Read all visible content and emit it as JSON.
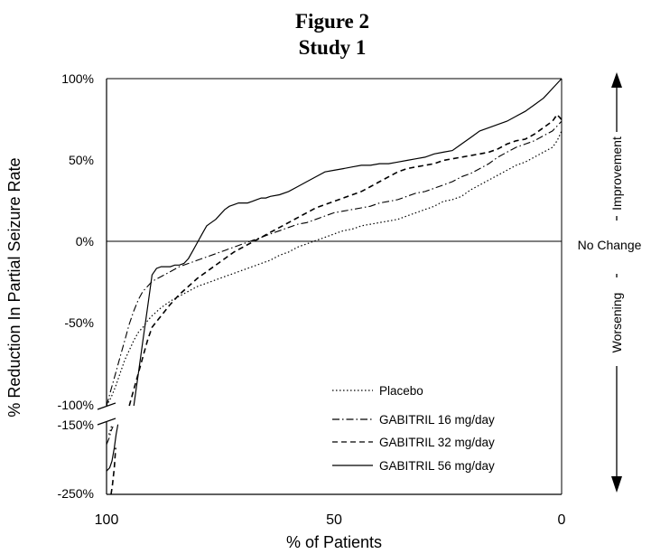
{
  "chart_data": {
    "type": "line",
    "title": "Figure 2",
    "subtitle": "Study 1",
    "xlabel": "% of Patients",
    "ylabel": "% Reduction In Partial Seizure Rate",
    "x_ticks": [
      "100",
      "50",
      "0"
    ],
    "y_ticks_upper": [
      "100%",
      "50%",
      "0%",
      "-50%",
      "-100%"
    ],
    "y_ticks_lower": [
      "-150%",
      "-250%"
    ],
    "xlim": [
      100,
      0
    ],
    "ylim_upper": [
      -100,
      100
    ],
    "ylim_lower": [
      -250,
      -140
    ],
    "zero_line_label": "No Change",
    "improvement_label": "Improvement",
    "worsening_label": "Worsening",
    "legend_position": "bottom-right",
    "series": [
      {
        "name": "Placebo",
        "style": "dotted",
        "x": [
          100,
          99,
          98,
          97,
          96,
          95,
          94,
          93,
          92,
          91,
          90,
          88,
          86,
          84,
          82,
          80,
          78,
          76,
          74,
          72,
          70,
          68,
          66,
          64,
          62,
          60,
          58,
          56,
          54,
          52,
          50,
          48,
          46,
          44,
          42,
          40,
          38,
          36,
          34,
          32,
          30,
          28,
          26,
          24,
          22,
          20,
          18,
          16,
          14,
          12,
          10,
          8,
          6,
          4,
          2,
          1,
          0
        ],
        "y": [
          -100,
          -95,
          -88,
          -80,
          -72,
          -66,
          -60,
          -55,
          -52,
          -48,
          -45,
          -40,
          -36,
          -33,
          -30,
          -27,
          -25,
          -23,
          -21,
          -19,
          -17,
          -15,
          -13,
          -11,
          -8,
          -6,
          -3,
          -1,
          1,
          3,
          5,
          7,
          8,
          10,
          11,
          12,
          13,
          14,
          16,
          18,
          20,
          22,
          25,
          26,
          28,
          32,
          35,
          38,
          41,
          44,
          47,
          49,
          52,
          55,
          58,
          62,
          68
        ]
      },
      {
        "name": "GABITRIL 16 mg/day",
        "style": "dash-dot",
        "x": [
          100,
          99,
          98,
          97,
          96,
          95,
          94,
          93,
          92,
          91,
          90,
          88,
          86,
          84,
          82,
          80,
          78,
          76,
          74,
          72,
          70,
          68,
          66,
          64,
          62,
          60,
          58,
          56,
          54,
          52,
          50,
          48,
          46,
          44,
          42,
          40,
          38,
          36,
          34,
          32,
          30,
          28,
          26,
          24,
          22,
          20,
          18,
          16,
          14,
          12,
          10,
          8,
          6,
          4,
          2,
          1,
          0
        ],
        "y": [
          -100,
          -90,
          -80,
          -70,
          -60,
          -50,
          -42,
          -35,
          -30,
          -27,
          -24,
          -21,
          -18,
          -15,
          -13,
          -11,
          -9,
          -7,
          -5,
          -3,
          -1,
          1,
          3,
          5,
          7,
          9,
          11,
          12,
          14,
          16,
          18,
          19,
          20,
          21,
          22,
          24,
          25,
          26,
          28,
          30,
          31,
          33,
          35,
          37,
          40,
          42,
          45,
          48,
          52,
          55,
          58,
          60,
          62,
          65,
          68,
          71,
          74
        ]
      },
      {
        "name": "GABITRIL 32 mg/day",
        "style": "dashed",
        "x": [
          95,
          94,
          93,
          92,
          91,
          90,
          88,
          86,
          84,
          82,
          80,
          78,
          76,
          74,
          72,
          70,
          68,
          66,
          64,
          62,
          60,
          58,
          56,
          54,
          52,
          50,
          48,
          46,
          44,
          42,
          40,
          38,
          36,
          34,
          32,
          30,
          28,
          26,
          24,
          22,
          20,
          18,
          16,
          14,
          12,
          10,
          8,
          6,
          4,
          2,
          1,
          0
        ],
        "y": [
          -100,
          -90,
          -80,
          -70,
          -60,
          -52,
          -45,
          -38,
          -32,
          -27,
          -22,
          -18,
          -14,
          -10,
          -6,
          -3,
          0,
          3,
          6,
          9,
          12,
          15,
          18,
          21,
          23,
          25,
          27,
          29,
          31,
          34,
          37,
          40,
          43,
          45,
          46,
          47,
          48,
          50,
          51,
          52,
          53,
          54,
          55,
          57,
          60,
          62,
          63,
          66,
          70,
          74,
          78,
          75
        ]
      },
      {
        "name": "GABITRIL 56 mg/day",
        "style": "solid",
        "x": [
          94,
          93,
          92,
          91,
          90,
          89,
          88,
          87,
          86,
          85,
          84,
          83,
          82,
          81,
          80,
          79,
          78,
          77,
          76,
          75,
          74,
          73,
          72,
          71,
          70,
          69,
          68,
          67,
          66,
          65,
          64,
          62,
          60,
          58,
          56,
          54,
          52,
          50,
          48,
          46,
          44,
          42,
          40,
          38,
          36,
          34,
          32,
          30,
          28,
          26,
          24,
          22,
          20,
          18,
          16,
          14,
          12,
          10,
          8,
          6,
          4,
          3,
          2,
          1,
          0
        ],
        "y": [
          -100,
          -80,
          -60,
          -40,
          -20,
          -16,
          -15,
          -15,
          -15,
          -14,
          -14,
          -13,
          -10,
          -5,
          0,
          5,
          10,
          12,
          14,
          17,
          20,
          22,
          23,
          24,
          24,
          24,
          25,
          26,
          27,
          27,
          28,
          29,
          31,
          34,
          37,
          40,
          43,
          44,
          45,
          46,
          47,
          47,
          48,
          48,
          49,
          50,
          51,
          52,
          54,
          55,
          56,
          60,
          64,
          68,
          70,
          72,
          74,
          77,
          80,
          84,
          88,
          91,
          94,
          97,
          100
        ]
      }
    ],
    "lower_panel": [
      {
        "name": "Placebo",
        "style": "dotted",
        "x": [
          99.5,
          99.2,
          99.0,
          98.8
        ],
        "y": [
          -160,
          -155,
          -150,
          -145
        ]
      },
      {
        "name": "GABITRIL 16 mg/day",
        "style": "dash-dot",
        "x": [
          100,
          99.4,
          99.0,
          98.6
        ],
        "y": [
          -175,
          -165,
          -155,
          -148
        ]
      },
      {
        "name": "GABITRIL 32 mg/day",
        "style": "dashed",
        "x": [
          99.0,
          98.7,
          98.3,
          98.0
        ],
        "y": [
          -250,
          -235,
          -210,
          -180
        ]
      },
      {
        "name": "GABITRIL 56 mg/day",
        "style": "solid",
        "x": [
          100,
          99.3,
          98.8,
          98.3,
          97.9,
          97.5
        ],
        "y": [
          -215,
          -210,
          -200,
          -180,
          -160,
          -145
        ]
      }
    ]
  }
}
